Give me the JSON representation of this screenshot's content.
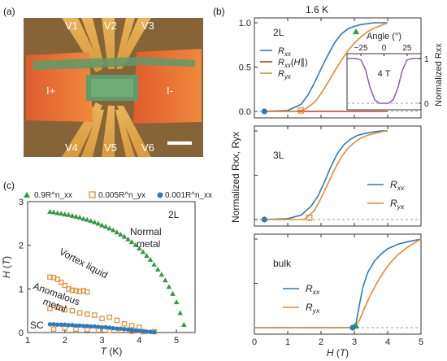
{
  "figure": {
    "panels": {
      "a": {
        "label": "(a)",
        "terminals": [
          "V1",
          "V2",
          "V3",
          "V4",
          "V5",
          "V6",
          "I+",
          "I-"
        ]
      },
      "b": {
        "label": "(b)",
        "temperature": "1.6 K"
      },
      "c": {
        "label": "(c)"
      }
    }
  },
  "chart_data": [
    {
      "id": "b-2L",
      "type": "line",
      "sample_label": "2L",
      "xlim": [
        0,
        5
      ],
      "ylim": [
        0,
        1.05
      ],
      "yticks": [
        0,
        0.5,
        1.0
      ],
      "ylabel": "Normalized R_xx, R_yx",
      "legend": [
        "R_xx",
        "R_xx(H∥)",
        "R_yx"
      ],
      "series": [
        {
          "name": "Rxx",
          "color": "#2b7bba",
          "x": [
            0.3,
            1.0,
            1.4,
            1.6,
            1.8,
            2.0,
            2.2,
            2.4,
            2.6,
            2.8,
            3.0,
            3.2,
            3.4,
            3.6,
            4.0
          ],
          "y": [
            0.0,
            0.01,
            0.08,
            0.18,
            0.32,
            0.48,
            0.63,
            0.77,
            0.87,
            0.93,
            0.96,
            0.98,
            0.99,
            1.0,
            1.0
          ]
        },
        {
          "name": "Rxx(H∥)",
          "color": "#c0392b",
          "x": [
            0.3,
            4.0
          ],
          "y": [
            0.0,
            0.0
          ]
        },
        {
          "name": "Ryx",
          "color": "#e8892c",
          "x": [
            0.3,
            1.2,
            1.5,
            1.8,
            2.0,
            2.2,
            2.4,
            2.6,
            2.8,
            3.0,
            3.2,
            3.4,
            3.6,
            3.8,
            4.0
          ],
          "y": [
            0.0,
            0.0,
            0.02,
            0.1,
            0.2,
            0.32,
            0.45,
            0.57,
            0.68,
            0.77,
            0.84,
            0.9,
            0.94,
            0.97,
            1.0
          ]
        }
      ],
      "markers": [
        {
          "shape": "triangle",
          "color": "#2e9e3a",
          "x": 3.05,
          "y": 0.9
        },
        {
          "shape": "square",
          "color": "#e8892c",
          "x": 1.4,
          "y": 0.01
        },
        {
          "shape": "circle",
          "color": "#2b7bba",
          "x": 0.3,
          "y": 0.0
        }
      ],
      "inset": {
        "title": "Angle (°)",
        "field": "4 T",
        "xticks": [
          "−25",
          "0",
          "25"
        ],
        "yticks": [
          "0",
          "1"
        ],
        "ylabel": "Normalized R_xx",
        "x": [
          -40,
          -30,
          -25,
          -20,
          -15,
          -10,
          -5,
          0,
          5,
          10,
          15,
          20,
          25,
          30,
          40
        ],
        "y": [
          1.0,
          1.0,
          0.97,
          0.75,
          0.35,
          0.08,
          0.0,
          0.0,
          0.0,
          0.08,
          0.35,
          0.75,
          0.97,
          1.0,
          1.0
        ]
      }
    },
    {
      "id": "b-3L",
      "type": "line",
      "sample_label": "3L",
      "xlim": [
        0,
        5
      ],
      "ylim": [
        0,
        1.05
      ],
      "legend": [
        "R_xx",
        "R_yx"
      ],
      "series": [
        {
          "name": "Rxx",
          "color": "#2b7bba",
          "x": [
            0.3,
            1.0,
            1.4,
            1.7,
            1.9,
            2.1,
            2.3,
            2.5,
            2.7,
            2.9,
            3.1,
            3.3,
            3.6,
            3.8,
            4.0
          ],
          "y": [
            0.0,
            0.01,
            0.05,
            0.15,
            0.26,
            0.42,
            0.6,
            0.75,
            0.85,
            0.91,
            0.95,
            0.97,
            0.99,
            1.0,
            1.0
          ]
        },
        {
          "name": "Ryx",
          "color": "#e8892c",
          "x": [
            0.3,
            1.5,
            1.8,
            2.0,
            2.2,
            2.4,
            2.6,
            2.8,
            3.0,
            3.2,
            3.4,
            3.6,
            3.8,
            4.0
          ],
          "y": [
            0.0,
            0.0,
            0.1,
            0.24,
            0.4,
            0.56,
            0.7,
            0.8,
            0.87,
            0.92,
            0.95,
            0.97,
            0.99,
            1.0
          ]
        }
      ],
      "markers": [
        {
          "shape": "square",
          "color": "#e8892c",
          "x": 1.65,
          "y": 0.02
        },
        {
          "shape": "circle",
          "color": "#2b7bba",
          "x": 0.3,
          "y": 0.0
        }
      ]
    },
    {
      "id": "b-bulk",
      "type": "line",
      "sample_label": "bulk",
      "xlim": [
        0,
        5
      ],
      "ylim": [
        0,
        1.05
      ],
      "xticks": [
        0,
        1,
        2,
        3,
        4,
        5
      ],
      "xlabel": "H (T)",
      "legend": [
        "R_xx",
        "R_yx"
      ],
      "series": [
        {
          "name": "Rxx",
          "color": "#2b7bba",
          "x": [
            0.0,
            2.9,
            3.05,
            3.15,
            3.25,
            3.4,
            3.6,
            3.8,
            4.0,
            4.3,
            4.6,
            5.0
          ],
          "y": [
            0.0,
            0.0,
            0.05,
            0.25,
            0.45,
            0.62,
            0.75,
            0.83,
            0.89,
            0.94,
            0.97,
            1.0
          ]
        },
        {
          "name": "Ryx",
          "color": "#e8892c",
          "x": [
            0.0,
            3.0,
            3.15,
            3.3,
            3.5,
            3.7,
            3.9,
            4.1,
            4.3,
            4.6,
            5.0
          ],
          "y": [
            0.0,
            0.0,
            0.08,
            0.22,
            0.38,
            0.52,
            0.64,
            0.74,
            0.82,
            0.91,
            1.0
          ]
        }
      ],
      "markers": [
        {
          "shape": "triangle",
          "color": "#2e9e3a",
          "x": 3.05,
          "y": 0.02
        },
        {
          "shape": "circle",
          "color": "#2b7bba",
          "x": 2.95,
          "y": 0.0
        }
      ]
    },
    {
      "id": "c",
      "type": "scatter",
      "sample_label": "2L",
      "xlim": [
        1,
        5.5
      ],
      "ylim": [
        0,
        3
      ],
      "xticks": [
        1,
        2,
        3,
        4,
        5
      ],
      "yticks": [
        0,
        1,
        2,
        3
      ],
      "xlabel": "T (K)",
      "ylabel": "H (T)",
      "legend_header": [
        "0.9R^n_xx",
        "0.005R^n_yx",
        "0.001R^n_xx"
      ],
      "region_labels": {
        "normal": [
          "Normal",
          "metal"
        ],
        "vortex": "Vortex liquid",
        "anomalous": [
          "Anomalous",
          "metal"
        ],
        "sc": "SC"
      },
      "series": [
        {
          "name": "0.9R^n_xx",
          "marker": "triangle",
          "color": "#2e9e3a",
          "x": [
            1.6,
            1.7,
            1.8,
            1.9,
            2.0,
            2.1,
            2.2,
            2.3,
            2.4,
            2.5,
            2.6,
            2.7,
            2.8,
            2.9,
            3.0,
            3.1,
            3.2,
            3.3,
            3.4,
            3.5,
            3.6,
            3.7,
            3.8,
            3.9,
            4.0,
            4.1,
            4.2,
            4.3,
            4.4,
            4.5,
            4.6,
            4.7,
            4.8,
            4.9,
            5.0,
            5.1,
            5.2
          ],
          "y": [
            2.77,
            2.76,
            2.74,
            2.73,
            2.71,
            2.7,
            2.68,
            2.66,
            2.64,
            2.61,
            2.59,
            2.56,
            2.53,
            2.5,
            2.46,
            2.43,
            2.39,
            2.35,
            2.3,
            2.25,
            2.2,
            2.14,
            2.08,
            2.01,
            1.93,
            1.85,
            1.76,
            1.67,
            1.56,
            1.45,
            1.33,
            1.2,
            1.05,
            0.89,
            0.7,
            0.45,
            0.18
          ]
        },
        {
          "name": "0.005R^n_yx",
          "marker": "square",
          "color": "#e8892c",
          "x": [
            1.6,
            1.7,
            1.8,
            1.9,
            2.0,
            2.1,
            2.2,
            2.3,
            2.4,
            2.5,
            2.6,
            1.6,
            1.8,
            2.0,
            2.2,
            2.4,
            2.6,
            2.8,
            3.0,
            3.2,
            3.4,
            3.6,
            3.8,
            4.0,
            1.7,
            2.0,
            2.3,
            2.6,
            2.9,
            3.2,
            3.5,
            3.8,
            4.1,
            4.4
          ],
          "y": [
            1.27,
            1.26,
            1.22,
            1.15,
            1.08,
            1.0,
            0.97,
            0.96,
            0.94,
            0.96,
            0.93,
            0.55,
            0.58,
            0.52,
            0.5,
            0.45,
            0.42,
            0.4,
            0.32,
            0.35,
            0.28,
            0.2,
            0.16,
            0.12,
            0.08,
            0.1,
            0.08,
            0.07,
            0.06,
            0.05,
            0.04,
            0.03,
            0.02,
            0.02
          ]
        },
        {
          "name": "0.001R^n_xx",
          "marker": "circle",
          "color": "#2b7bba",
          "x": [
            1.6,
            1.7,
            1.8,
            1.9,
            2.0,
            2.1,
            2.2,
            2.3,
            2.4,
            2.5,
            2.6,
            2.7,
            2.8,
            2.9,
            3.0,
            3.1,
            3.2,
            3.3,
            3.4,
            3.5,
            3.6,
            3.7,
            3.8,
            3.9,
            4.0,
            4.1,
            4.2,
            4.3,
            4.4
          ],
          "y": [
            0.19,
            0.19,
            0.18,
            0.18,
            0.18,
            0.17,
            0.17,
            0.16,
            0.16,
            0.15,
            0.15,
            0.14,
            0.14,
            0.13,
            0.12,
            0.12,
            0.11,
            0.1,
            0.09,
            0.09,
            0.08,
            0.07,
            0.06,
            0.05,
            0.04,
            0.03,
            0.02,
            0.015,
            0.01
          ]
        }
      ]
    }
  ]
}
